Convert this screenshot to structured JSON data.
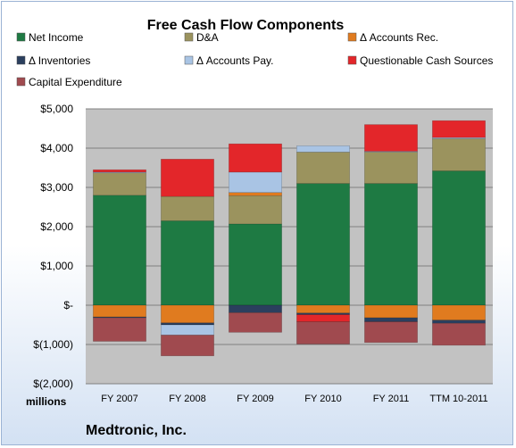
{
  "chart_data": {
    "type": "bar",
    "stacked": true,
    "title": "Free Cash Flow Components",
    "ylabel": "",
    "xlabel": "",
    "units_label": "millions",
    "company": "Medtronic, Inc.",
    "ylim": [
      -2000,
      5000
    ],
    "yticks": [
      {
        "value": 5000,
        "label": "$5,000"
      },
      {
        "value": 4000,
        "label": "$4,000"
      },
      {
        "value": 3000,
        "label": "$3,000"
      },
      {
        "value": 2000,
        "label": "$2,000"
      },
      {
        "value": 1000,
        "label": "$1,000"
      },
      {
        "value": 0,
        "label": "$-"
      },
      {
        "value": -1000,
        "label": "$(1,000)"
      },
      {
        "value": -2000,
        "label": "$(2,000)"
      }
    ],
    "grid": true,
    "legend_position": "top",
    "categories": [
      "FY 2007",
      "FY 2008",
      "FY 2009",
      "FY 2010",
      "FY 2011",
      "TTM 10-2011"
    ],
    "series": [
      {
        "name": "Net Income",
        "color": "#1e7a43",
        "values": [
          2800,
          2150,
          2070,
          3100,
          3100,
          3420
        ]
      },
      {
        "name": "D&A",
        "color": "#9b935e",
        "values": [
          570,
          620,
          720,
          800,
          800,
          820
        ]
      },
      {
        "name": "Δ Accounts Rec.",
        "color": "#e07b1f",
        "values": [
          -300,
          -450,
          80,
          -200,
          -320,
          -380
        ]
      },
      {
        "name": "Δ Inventories",
        "color": "#2b3f5e",
        "values": [
          -20,
          -50,
          -190,
          -40,
          -100,
          -80
        ]
      },
      {
        "name": "Δ Accounts Pay.",
        "color": "#a9c4e4",
        "values": [
          20,
          -260,
          520,
          160,
          20,
          30
        ]
      },
      {
        "name": "Questionable Cash Sources",
        "color": "#e3262a",
        "values": [
          60,
          950,
          720,
          -180,
          680,
          430
        ]
      },
      {
        "name": "Capital Expenditure",
        "color": "#a04a4f",
        "values": [
          -600,
          -530,
          -500,
          -570,
          -530,
          -560
        ]
      }
    ]
  }
}
